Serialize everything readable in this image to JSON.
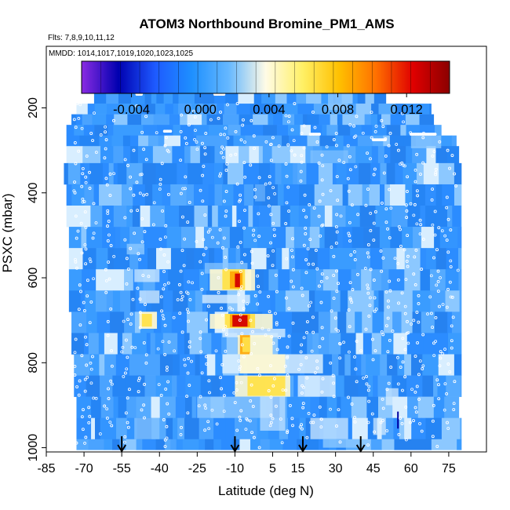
{
  "chart_data": {
    "type": "heatmap",
    "title": "ATOM3 Northbound Bromine_PM1_AMS",
    "flights_note": "Flts: 7,8,9,10,11,12",
    "dates_note": "MMDD: 1014,1017,1019,1020,1023,1025",
    "xlabel": "Latitude (deg N)",
    "ylabel": "PSXC (mbar)",
    "xlim": [
      -85,
      90
    ],
    "ylim": [
      1010,
      55
    ],
    "x_ticks": [
      -85,
      -70,
      -55,
      -40,
      -25,
      -10,
      5,
      15,
      30,
      45,
      60,
      75
    ],
    "y_ticks": [
      200,
      400,
      600,
      800,
      1000
    ],
    "colorbar": {
      "min": -0.0069,
      "max": 0.0145,
      "ticks": [
        "-0.004",
        "0.000",
        "0.004",
        "0.008",
        "0.012"
      ],
      "tick_values": [
        -0.004,
        0.0,
        0.004,
        0.008,
        0.012
      ],
      "colors": [
        "#8a2be2",
        "#0000b0",
        "#1e5aff",
        "#1e90ff",
        "#66b8ff",
        "#fffbe6",
        "#fff066",
        "#ffc000",
        "#ff7000",
        "#e00000",
        "#8b0000"
      ]
    },
    "arrows_latitude": [
      -55,
      -10,
      17,
      40
    ],
    "band_colors": {
      "base": "#2b8cff",
      "light": "#8cc8ff",
      "pale": "#d8eeff",
      "cream": "#fff8d0",
      "yellow": "#ffe24a",
      "orange": "#ffa500",
      "red": "#d40000",
      "dark_blue": "#0000a0"
    }
  }
}
